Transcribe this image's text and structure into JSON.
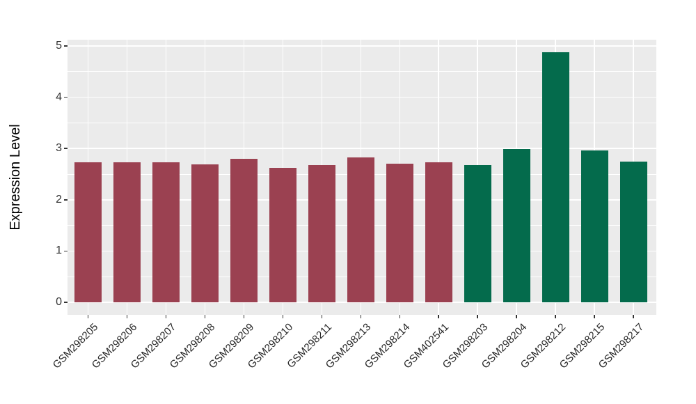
{
  "chart_data": {
    "type": "bar",
    "title": "",
    "xlabel": "",
    "ylabel": "Expression Level",
    "categories": [
      "GSM298205",
      "GSM298206",
      "GSM298207",
      "GSM298208",
      "GSM298209",
      "GSM298210",
      "GSM298211",
      "GSM298213",
      "GSM298214",
      "GSM402541",
      "GSM298203",
      "GSM298204",
      "GSM298212",
      "GSM298215",
      "GSM298217"
    ],
    "values": [
      2.73,
      2.73,
      2.73,
      2.69,
      2.8,
      2.62,
      2.68,
      2.82,
      2.7,
      2.73,
      2.68,
      2.99,
      4.88,
      2.96,
      2.75
    ],
    "bar_color_groups": [
      "maroon",
      "maroon",
      "maroon",
      "maroon",
      "maroon",
      "maroon",
      "maroon",
      "maroon",
      "maroon",
      "maroon",
      "green",
      "green",
      "green",
      "green",
      "green"
    ],
    "palette": {
      "maroon": "#9B4151",
      "green": "#046B4C"
    },
    "y_ticks": [
      0,
      1,
      2,
      3,
      4,
      5
    ],
    "y_minor_ticks": [
      0.5,
      1.5,
      2.5,
      3.5,
      4.5
    ],
    "ylim": [
      0,
      5
    ],
    "ylim_display": [
      -0.24,
      5.12
    ],
    "legend": "none",
    "grid": "white major/minor horizontal lines and major vertical lines on gray panel",
    "style": {
      "panel_background": "#EBEBEB",
      "grid_color": "#FFFFFF",
      "axis_text_color": "#333333",
      "axis_title_color": "#000000",
      "tick_mark_color": "#333333",
      "page_background": "#FFFFFF"
    }
  }
}
